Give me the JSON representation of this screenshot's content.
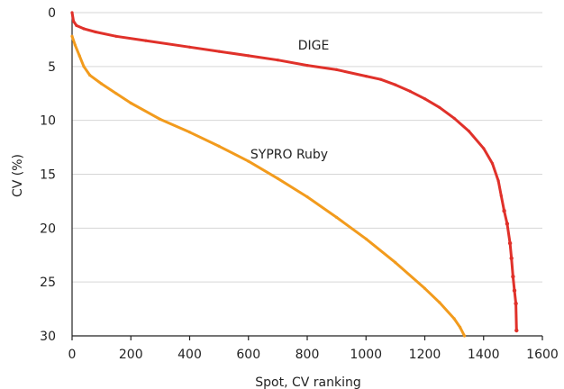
{
  "chart_data": {
    "type": "scatter",
    "title": "",
    "xlabel": "Spot, CV ranking",
    "ylabel": "CV (%)",
    "xlim": [
      0,
      1600
    ],
    "ylim": [
      0,
      30
    ],
    "y_inverted": true,
    "grid": "horizontal",
    "x_ticks": [
      0,
      200,
      400,
      600,
      800,
      1000,
      1200,
      1400,
      1600
    ],
    "y_ticks": [
      0,
      5,
      10,
      15,
      20,
      25,
      30
    ],
    "series": [
      {
        "name": "DIGE",
        "color": "#e0312a",
        "points": [
          [
            0,
            0
          ],
          [
            5,
            0.8
          ],
          [
            15,
            1.2
          ],
          [
            40,
            1.5
          ],
          [
            80,
            1.8
          ],
          [
            150,
            2.2
          ],
          [
            250,
            2.6
          ],
          [
            400,
            3.2
          ],
          [
            500,
            3.6
          ],
          [
            600,
            4.0
          ],
          [
            700,
            4.4
          ],
          [
            800,
            4.9
          ],
          [
            900,
            5.3
          ],
          [
            1000,
            5.9
          ],
          [
            1050,
            6.2
          ],
          [
            1100,
            6.7
          ],
          [
            1150,
            7.3
          ],
          [
            1200,
            8.0
          ],
          [
            1250,
            8.8
          ],
          [
            1300,
            9.8
          ],
          [
            1350,
            11.0
          ],
          [
            1400,
            12.6
          ],
          [
            1430,
            14.0
          ],
          [
            1450,
            15.6
          ],
          [
            1460,
            17.0
          ],
          [
            1470,
            18.4
          ],
          [
            1480,
            19.6
          ],
          [
            1490,
            21.4
          ],
          [
            1495,
            22.8
          ],
          [
            1500,
            24.5
          ],
          [
            1505,
            25.8
          ],
          [
            1510,
            27.0
          ],
          [
            1512,
            29.5
          ]
        ]
      },
      {
        "name": "SYPRO Ruby",
        "color": "#f29b1d",
        "points": [
          [
            0,
            2.2
          ],
          [
            10,
            3.0
          ],
          [
            25,
            4.0
          ],
          [
            40,
            5.0
          ],
          [
            60,
            5.8
          ],
          [
            100,
            6.6
          ],
          [
            150,
            7.5
          ],
          [
            200,
            8.4
          ],
          [
            300,
            9.9
          ],
          [
            400,
            11.1
          ],
          [
            500,
            12.4
          ],
          [
            600,
            13.8
          ],
          [
            700,
            15.4
          ],
          [
            800,
            17.1
          ],
          [
            900,
            19.0
          ],
          [
            1000,
            21.0
          ],
          [
            1100,
            23.2
          ],
          [
            1200,
            25.6
          ],
          [
            1250,
            26.9
          ],
          [
            1300,
            28.4
          ],
          [
            1320,
            29.2
          ],
          [
            1335,
            30.0
          ]
        ]
      }
    ]
  }
}
